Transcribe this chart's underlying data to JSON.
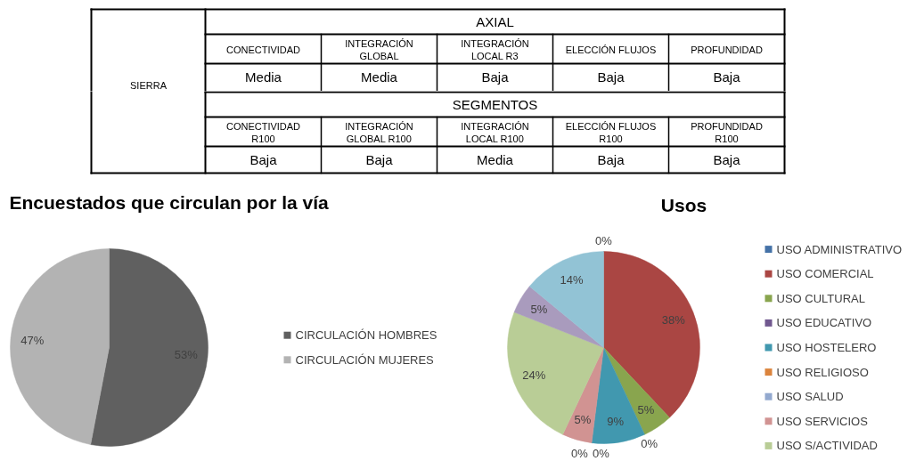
{
  "chart_data": [
    {
      "type": "other",
      "ylabel": "SIERRA",
      "title": "AXIAL",
      "categories": [
        "CONECTIVIDAD",
        "INTEGRACIÓN GLOBAL",
        "INTEGRACIÓN LOCAL R3",
        "ELECCIÓN FLUJOS",
        "PROFUNDIDAD"
      ],
      "annotations": [
        "Media",
        "Media",
        "Baja",
        "Baja",
        "Baja"
      ]
    },
    {
      "type": "other",
      "title": "SEGMENTOS",
      "categories": [
        "CONECTIVIDAD R100",
        "INTEGRACIÓN GLOBAL R100",
        "INTEGRACIÓN LOCAL R100",
        "ELECCIÓN FLUJOS R100",
        "PROFUNDIDAD R100"
      ],
      "annotations": [
        "Baja",
        "Baja",
        "Media",
        "Baja",
        "Baja"
      ]
    },
    {
      "type": "pie",
      "title": "Encuestados que circulan por la vía",
      "categories": [
        "CIRCULACIÓN HOMBRES",
        "CIRCULACIÓN MUJERES"
      ],
      "values": [
        53,
        47
      ],
      "colors": [
        "#606060",
        "#b3b3b3"
      ],
      "value_labels": [
        "53%",
        "47%"
      ],
      "legend": "right"
    },
    {
      "type": "pie",
      "title": "Usos",
      "categories": [
        "USO ADMINISTRATIVO",
        "USO COMERCIAL",
        "USO CULTURAL",
        "USO EDUCATIVO",
        "USO HOSTELERO",
        "USO RELIGIOSO",
        "USO SALUD",
        "USO SERVICIOS",
        "USO S/ACTIVIDAD",
        null,
        null
      ],
      "values": [
        0,
        38,
        5,
        0,
        9,
        0,
        0,
        5,
        24,
        5,
        14
      ],
      "colors": [
        "#4572a7",
        "#aa4643",
        "#89a54e",
        "#71588f",
        "#4198af",
        "#db843d",
        "#93a9cf",
        "#d19392",
        "#b9cd96",
        "#a99bbd",
        "#92c3d5"
      ],
      "value_labels": [
        "0%",
        "38%",
        "5%",
        "0%",
        "9%",
        "0%",
        "0%",
        "5%",
        "24%",
        "5%",
        "14%"
      ],
      "legend": "right"
    }
  ]
}
